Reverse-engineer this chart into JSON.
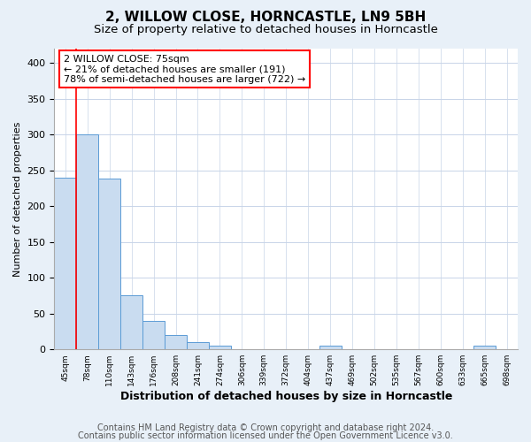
{
  "title1": "2, WILLOW CLOSE, HORNCASTLE, LN9 5BH",
  "title2": "Size of property relative to detached houses in Horncastle",
  "xlabel": "Distribution of detached houses by size in Horncastle",
  "ylabel": "Number of detached properties",
  "categories": [
    "45sqm",
    "78sqm",
    "110sqm",
    "143sqm",
    "176sqm",
    "208sqm",
    "241sqm",
    "274sqm",
    "306sqm",
    "339sqm",
    "372sqm",
    "404sqm",
    "437sqm",
    "469sqm",
    "502sqm",
    "535sqm",
    "567sqm",
    "600sqm",
    "633sqm",
    "665sqm",
    "698sqm"
  ],
  "values": [
    240,
    300,
    239,
    75,
    40,
    20,
    10,
    5,
    0,
    0,
    0,
    0,
    5,
    0,
    0,
    0,
    0,
    0,
    0,
    5,
    0
  ],
  "bar_color": "#c9dcf0",
  "bar_edge_color": "#5b9bd5",
  "red_line_x": 0.5,
  "annotation_text": "2 WILLOW CLOSE: 75sqm\n← 21% of detached houses are smaller (191)\n78% of semi-detached houses are larger (722) →",
  "annotation_box_color": "white",
  "annotation_box_edge_color": "red",
  "ylim": [
    0,
    420
  ],
  "yticks": [
    0,
    50,
    100,
    150,
    200,
    250,
    300,
    350,
    400
  ],
  "footer1": "Contains HM Land Registry data © Crown copyright and database right 2024.",
  "footer2": "Contains public sector information licensed under the Open Government Licence v3.0.",
  "fig_background_color": "#e8f0f8",
  "plot_background_color": "white",
  "title1_fontsize": 11,
  "title2_fontsize": 9.5,
  "xlabel_fontsize": 9,
  "ylabel_fontsize": 8,
  "footer_fontsize": 7,
  "grid_color": "#c8d4e8",
  "ann_fontsize": 8
}
